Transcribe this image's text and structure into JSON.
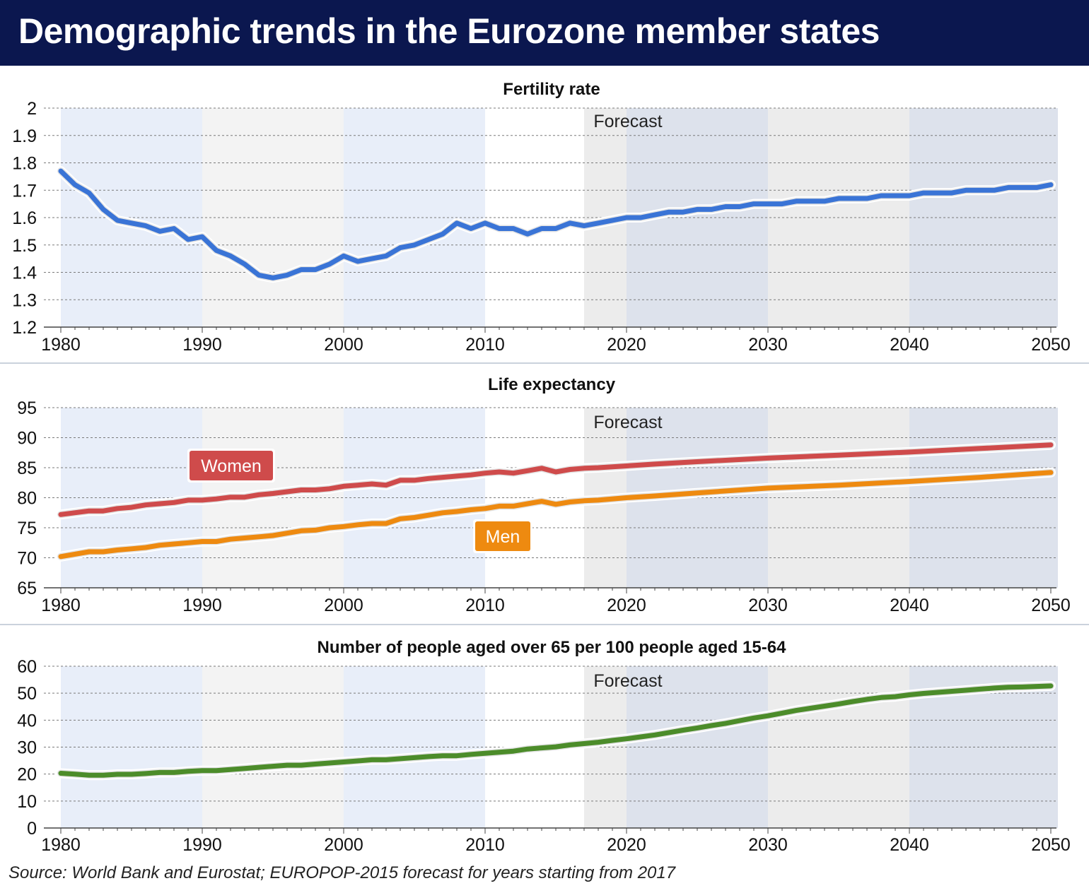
{
  "header": {
    "title": "Demographic trends in the Eurozone member states"
  },
  "source": "Source: World Bank and Eurostat; EUROPOP-2015 forecast for years starting from 2017",
  "colors": {
    "header_bg": "#0b174f",
    "fertility": "#3a74d6",
    "women": "#cf4b4b",
    "men": "#ee8a10",
    "old_age": "#4c8c2a"
  },
  "chart_data": [
    {
      "type": "line",
      "title": "Fertility rate",
      "annotation": "Forecast",
      "forecast_from": 2017,
      "x_ticks": [
        1980,
        1990,
        2000,
        2010,
        2020,
        2030,
        2040,
        2050
      ],
      "y_ticks": [
        "2",
        "1.9",
        "1.8",
        "1.7",
        "1.6",
        "1.5",
        "1.4",
        "1.3",
        "1.2"
      ],
      "ylim": [
        1.2,
        2.0
      ],
      "xlim": [
        1980,
        2050
      ],
      "grid": true,
      "series": [
        {
          "color": "#3a74d6",
          "x": [
            1980,
            1981,
            1982,
            1983,
            1984,
            1985,
            1986,
            1987,
            1988,
            1989,
            1990,
            1991,
            1992,
            1993,
            1994,
            1995,
            1996,
            1997,
            1998,
            1999,
            2000,
            2001,
            2002,
            2003,
            2004,
            2005,
            2006,
            2007,
            2008,
            2009,
            2010,
            2011,
            2012,
            2013,
            2014,
            2015,
            2016,
            2017,
            2018,
            2019,
            2020,
            2021,
            2022,
            2023,
            2024,
            2025,
            2026,
            2027,
            2028,
            2029,
            2030,
            2031,
            2032,
            2033,
            2034,
            2035,
            2036,
            2037,
            2038,
            2039,
            2040,
            2041,
            2042,
            2043,
            2044,
            2045,
            2046,
            2047,
            2048,
            2049,
            2050
          ],
          "values": [
            1.77,
            1.72,
            1.69,
            1.63,
            1.59,
            1.58,
            1.57,
            1.55,
            1.56,
            1.52,
            1.53,
            1.48,
            1.46,
            1.43,
            1.39,
            1.38,
            1.39,
            1.41,
            1.41,
            1.43,
            1.46,
            1.44,
            1.45,
            1.46,
            1.49,
            1.5,
            1.52,
            1.54,
            1.58,
            1.56,
            1.58,
            1.56,
            1.56,
            1.54,
            1.56,
            1.56,
            1.58,
            1.57,
            1.58,
            1.59,
            1.6,
            1.6,
            1.61,
            1.62,
            1.62,
            1.63,
            1.63,
            1.64,
            1.64,
            1.65,
            1.65,
            1.65,
            1.66,
            1.66,
            1.66,
            1.67,
            1.67,
            1.67,
            1.68,
            1.68,
            1.68,
            1.69,
            1.69,
            1.69,
            1.7,
            1.7,
            1.7,
            1.71,
            1.71,
            1.71,
            1.72
          ]
        }
      ]
    },
    {
      "type": "line",
      "title": "Life expectancy",
      "annotation": "Forecast",
      "forecast_from": 2017,
      "x_ticks": [
        1980,
        1990,
        2000,
        2010,
        2020,
        2030,
        2040,
        2050
      ],
      "y_ticks": [
        "95",
        "90",
        "85",
        "80",
        "75",
        "70",
        "65"
      ],
      "ylim": [
        65,
        95
      ],
      "xlim": [
        1980,
        2050
      ],
      "grid": true,
      "series": [
        {
          "name": "Women",
          "color": "#cf4b4b",
          "x": [
            1980,
            1982,
            1983,
            1984,
            1985,
            1986,
            1987,
            1988,
            1989,
            1990,
            1991,
            1992,
            1993,
            1994,
            1995,
            1996,
            1997,
            1998,
            1999,
            2000,
            2001,
            2002,
            2003,
            2004,
            2005,
            2006,
            2007,
            2008,
            2009,
            2010,
            2011,
            2012,
            2013,
            2014,
            2015,
            2016,
            2017,
            2018,
            2020,
            2022,
            2025,
            2030,
            2035,
            2040,
            2045,
            2050
          ],
          "values": [
            77.2,
            77.8,
            77.8,
            78.2,
            78.4,
            78.8,
            79.0,
            79.2,
            79.6,
            79.6,
            79.8,
            80.1,
            80.1,
            80.5,
            80.7,
            81.0,
            81.3,
            81.3,
            81.5,
            81.9,
            82.1,
            82.3,
            82.1,
            82.9,
            82.9,
            83.2,
            83.4,
            83.6,
            83.8,
            84.1,
            84.3,
            84.1,
            84.5,
            84.9,
            84.3,
            84.7,
            84.9,
            85.0,
            85.3,
            85.6,
            86.0,
            86.6,
            87.1,
            87.6,
            88.2,
            88.8
          ]
        },
        {
          "name": "Men",
          "color": "#ee8a10",
          "x": [
            1980,
            1982,
            1983,
            1984,
            1985,
            1986,
            1987,
            1988,
            1989,
            1990,
            1991,
            1992,
            1993,
            1994,
            1995,
            1996,
            1997,
            1998,
            1999,
            2000,
            2001,
            2002,
            2003,
            2004,
            2005,
            2006,
            2007,
            2008,
            2009,
            2010,
            2011,
            2012,
            2013,
            2014,
            2015,
            2016,
            2017,
            2018,
            2020,
            2022,
            2025,
            2030,
            2035,
            2040,
            2045,
            2050
          ],
          "values": [
            70.2,
            71.0,
            71.0,
            71.3,
            71.5,
            71.7,
            72.1,
            72.3,
            72.5,
            72.7,
            72.7,
            73.1,
            73.3,
            73.5,
            73.7,
            74.1,
            74.5,
            74.6,
            75.0,
            75.2,
            75.5,
            75.7,
            75.7,
            76.5,
            76.7,
            77.1,
            77.5,
            77.7,
            78.0,
            78.2,
            78.6,
            78.6,
            79.0,
            79.4,
            78.9,
            79.3,
            79.5,
            79.6,
            80.0,
            80.3,
            80.8,
            81.6,
            82.1,
            82.7,
            83.4,
            84.2
          ]
        }
      ]
    },
    {
      "type": "line",
      "title": "Number of people aged over 65 per 100 people aged 15-64",
      "annotation": "Forecast",
      "forecast_from": 2017,
      "x_ticks": [
        1980,
        1990,
        2000,
        2010,
        2020,
        2030,
        2040,
        2050
      ],
      "y_ticks": [
        "60",
        "50",
        "40",
        "30",
        "20",
        "10",
        "0"
      ],
      "ylim": [
        0,
        60
      ],
      "xlim": [
        1980,
        2050
      ],
      "grid": true,
      "series": [
        {
          "color": "#4c8c2a",
          "x": [
            1980,
            1981,
            1982,
            1983,
            1984,
            1985,
            1986,
            1987,
            1988,
            1989,
            1990,
            1991,
            1992,
            1993,
            1994,
            1995,
            1996,
            1997,
            1998,
            1999,
            2000,
            2001,
            2002,
            2003,
            2004,
            2005,
            2006,
            2007,
            2008,
            2009,
            2010,
            2011,
            2012,
            2013,
            2014,
            2015,
            2016,
            2017,
            2018,
            2019,
            2020,
            2021,
            2022,
            2023,
            2024,
            2025,
            2026,
            2027,
            2028,
            2029,
            2030,
            2031,
            2032,
            2033,
            2034,
            2035,
            2036,
            2037,
            2038,
            2039,
            2040,
            2041,
            2042,
            2043,
            2044,
            2045,
            2046,
            2047,
            2048,
            2049,
            2050
          ],
          "values": [
            20.3,
            20.0,
            19.6,
            19.6,
            19.9,
            19.9,
            20.2,
            20.6,
            20.6,
            21.0,
            21.3,
            21.3,
            21.7,
            22.1,
            22.5,
            22.9,
            23.3,
            23.3,
            23.7,
            24.1,
            24.5,
            24.9,
            25.3,
            25.3,
            25.7,
            26.1,
            26.5,
            26.8,
            26.8,
            27.3,
            27.7,
            28.1,
            28.5,
            29.3,
            29.7,
            30.1,
            30.8,
            31.3,
            31.8,
            32.5,
            33.1,
            33.8,
            34.5,
            35.4,
            36.3,
            37.1,
            38.0,
            38.8,
            39.8,
            40.8,
            41.6,
            42.6,
            43.6,
            44.4,
            45.2,
            46.0,
            46.9,
            47.7,
            48.4,
            48.7,
            49.4,
            49.9,
            50.3,
            50.7,
            51.1,
            51.5,
            51.9,
            52.2,
            52.3,
            52.5,
            52.7
          ]
        }
      ]
    }
  ]
}
